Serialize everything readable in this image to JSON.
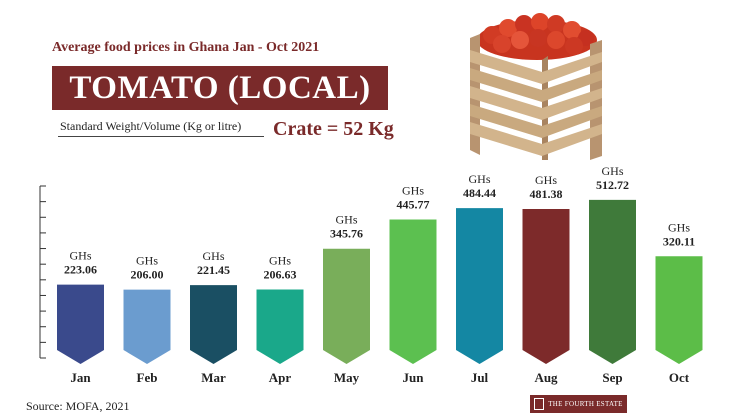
{
  "header": {
    "subtitle": "Average food prices in Ghana Jan - Oct 2021",
    "title": "TOMATO (LOCAL)",
    "standard_label": "Standard Weight/Volume (Kg or litre)",
    "crate_label": "Crate = 52 Kg"
  },
  "footer": {
    "source": "Source: MOFA, 2021",
    "brand": "THE FOURTH ESTATE"
  },
  "chart_data": {
    "type": "bar",
    "categories": [
      "Jan",
      "Feb",
      "Mar",
      "Apr",
      "May",
      "Jun",
      "Jul",
      "Aug",
      "Sep",
      "Oct"
    ],
    "values": [
      223.06,
      206.0,
      221.45,
      206.63,
      345.76,
      445.77,
      484.44,
      481.38,
      512.72,
      320.11
    ],
    "value_labels": [
      "223.06",
      "206.00",
      "221.45",
      "206.63",
      "345.76",
      "445.77",
      "484.44",
      "481.38",
      "512.72",
      "320.11"
    ],
    "unit_label": "GHs",
    "colors": [
      "#3a4a8c",
      "#6b9ccf",
      "#1a4f63",
      "#1aa88a",
      "#79ae5a",
      "#5cc050",
      "#1487a3",
      "#7d2a2a",
      "#3f7a3a",
      "#5cbd48"
    ],
    "ylim": [
      0,
      560
    ],
    "grid": false,
    "xlabel": "",
    "ylabel": ""
  }
}
